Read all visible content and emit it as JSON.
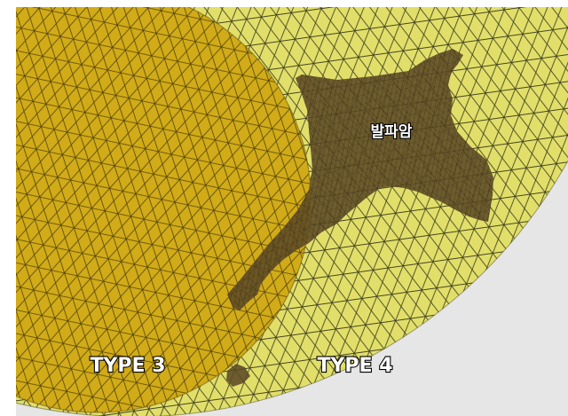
{
  "labels": {
    "volcanic_rock": "발파암",
    "type3": "TYPE 3",
    "type4": "TYPE 4"
  },
  "colors": {
    "page_background": "#ffffff",
    "frame_background": "#e6e6e6",
    "type3_surface": "#d1ab18",
    "type4_surface": "#e1df6a",
    "rock_region": "#5c4a26",
    "mesh_lines": "#2a2a12"
  }
}
